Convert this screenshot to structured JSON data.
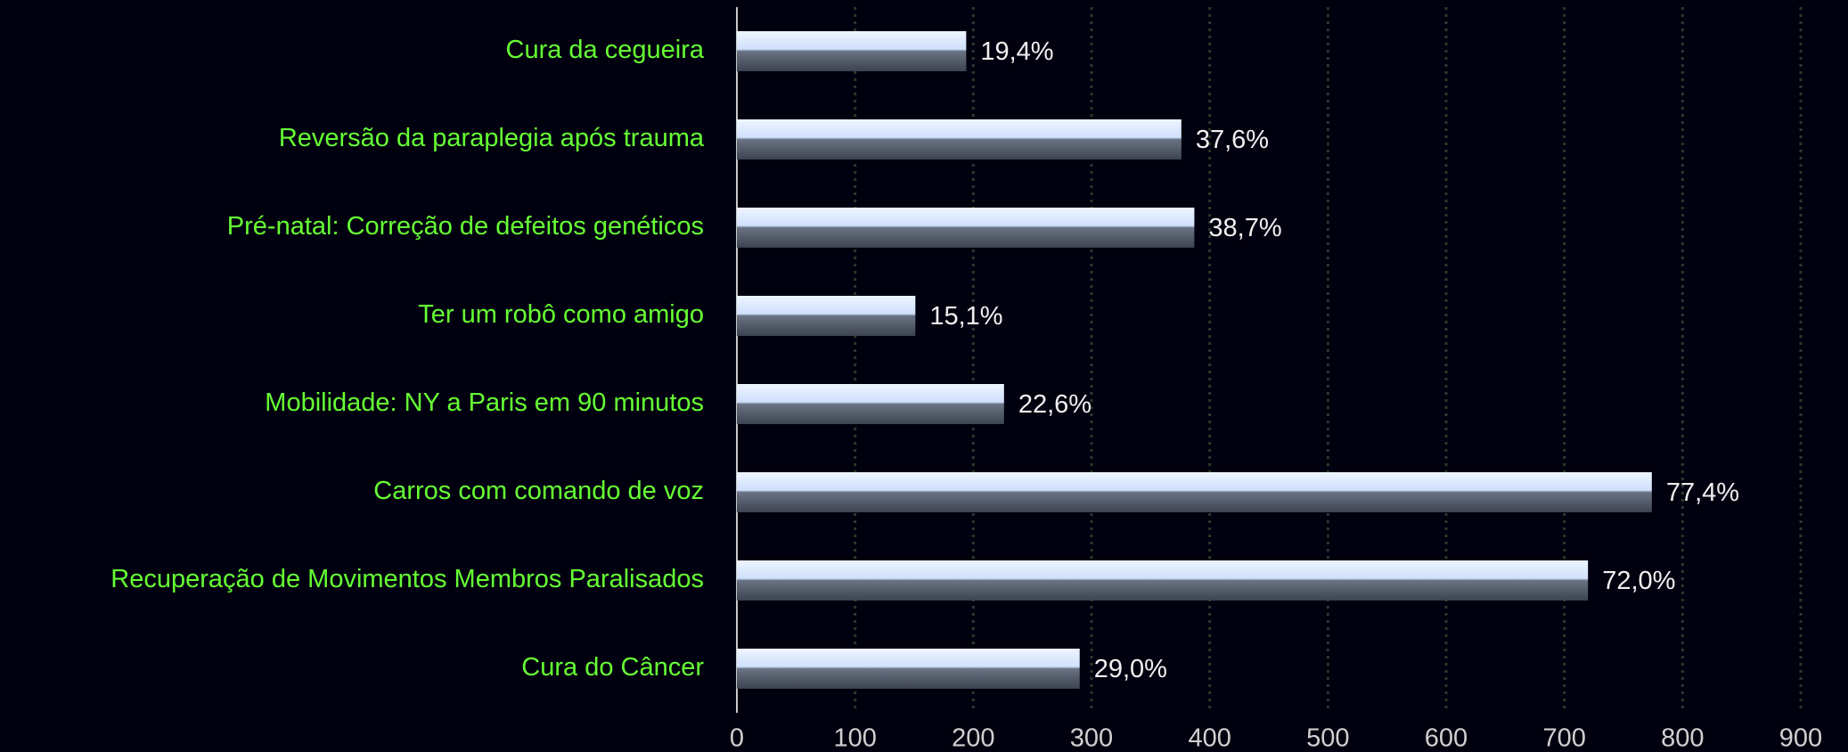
{
  "chart_data": {
    "type": "barh",
    "categories": [
      "Cura da cegueira",
      "Reversão da paraplegia após trauma",
      "Pré-natal: Correção de defeitos genéticos",
      "Ter um robô como amigo",
      "Mobilidade: NY a Paris em 90 minutos",
      "Carros com comando de voz",
      "Recuperação de Movimentos Membros Paralisados",
      "Cura do Câncer"
    ],
    "values": [
      194,
      376,
      387,
      151,
      226,
      774,
      720,
      290
    ],
    "value_labels": [
      "19,4%",
      "37,6%",
      "38,7%",
      "15,1%",
      "22,6%",
      "77,4%",
      "72,0%",
      "29,0%"
    ],
    "xlim": [
      0,
      900
    ],
    "xticks": [
      0,
      100,
      200,
      300,
      400,
      500,
      600,
      700,
      800,
      900
    ],
    "grid": true,
    "color": "#cfe0fb"
  }
}
